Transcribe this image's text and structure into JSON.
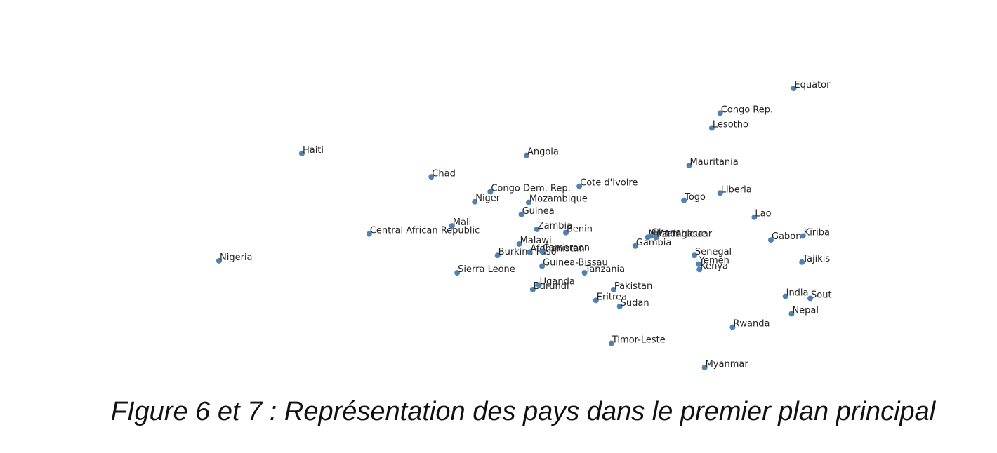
{
  "caption": "FIgure 6 et 7 : Représentation des pays dans le premier plan principal",
  "colors": {
    "point": "#4f81b3",
    "label": "#222222",
    "background": "#ffffff"
  },
  "chart_data": {
    "type": "scatter",
    "title": "",
    "xlabel": "",
    "ylabel": "",
    "axes_visible": false,
    "grid": false,
    "xlim": [
      -3.6,
      3.6
    ],
    "ylim": [
      -2.3,
      2.2
    ],
    "points": [
      {
        "label": "Nigeria",
        "x": -3.5,
        "y": -0.45
      },
      {
        "label": "Haiti",
        "x": -2.7,
        "y": 1.15
      },
      {
        "label": "Central African Republic",
        "x": -2.05,
        "y": -0.05
      },
      {
        "label": "Chad",
        "x": -1.45,
        "y": 0.8
      },
      {
        "label": "Mali",
        "x": -1.25,
        "y": 0.07
      },
      {
        "label": "Sierra Leone",
        "x": -1.2,
        "y": -0.63
      },
      {
        "label": "Niger",
        "x": -1.03,
        "y": 0.43
      },
      {
        "label": "Congo Dem. Rep.",
        "x": -0.88,
        "y": 0.58
      },
      {
        "label": "Burkina Faso",
        "x": -0.81,
        "y": -0.37
      },
      {
        "label": "Malawi",
        "x": -0.6,
        "y": -0.2
      },
      {
        "label": "Guinea",
        "x": -0.58,
        "y": 0.24
      },
      {
        "label": "Angola",
        "x": -0.53,
        "y": 1.12
      },
      {
        "label": "Mozambique",
        "x": -0.51,
        "y": 0.42
      },
      {
        "label": "Afghanistan",
        "x": -0.5,
        "y": -0.32
      },
      {
        "label": "Burundi",
        "x": -0.47,
        "y": -0.88
      },
      {
        "label": "Zambia",
        "x": -0.43,
        "y": 0.02
      },
      {
        "label": "Uganda",
        "x": -0.41,
        "y": -0.81
      },
      {
        "label": "Guinea-Bissau",
        "x": -0.38,
        "y": -0.53
      },
      {
        "label": "Cameroon",
        "x": -0.38,
        "y": -0.31
      },
      {
        "label": "Benin",
        "x": -0.15,
        "y": -0.03
      },
      {
        "label": "Cote d'Ivoire",
        "x": -0.02,
        "y": 0.66
      },
      {
        "label": "Tanzania",
        "x": 0.03,
        "y": -0.63
      },
      {
        "label": "Eritrea",
        "x": 0.14,
        "y": -1.04
      },
      {
        "label": "Timor-Leste",
        "x": 0.29,
        "y": -1.68
      },
      {
        "label": "Pakistan",
        "x": 0.31,
        "y": -0.88
      },
      {
        "label": "Sudan",
        "x": 0.37,
        "y": -1.13
      },
      {
        "label": "Gambia",
        "x": 0.52,
        "y": -0.23
      },
      {
        "label": "Mozambique",
        "x": 0.64,
        "y": -0.1
      },
      {
        "label": "Ghana",
        "x": 0.67,
        "y": -0.08
      },
      {
        "label": "Madagascar",
        "x": 0.72,
        "y": -0.1
      },
      {
        "label": "Togo",
        "x": 0.99,
        "y": 0.45
      },
      {
        "label": "Mauritania",
        "x": 1.04,
        "y": 0.97
      },
      {
        "label": "Senegal",
        "x": 1.09,
        "y": -0.37
      },
      {
        "label": "Yemen",
        "x": 1.13,
        "y": -0.5
      },
      {
        "label": "Kenya",
        "x": 1.14,
        "y": -0.58
      },
      {
        "label": "Myanmar",
        "x": 1.19,
        "y": -2.04
      },
      {
        "label": "Lesotho",
        "x": 1.26,
        "y": 1.53
      },
      {
        "label": "Liberia",
        "x": 1.34,
        "y": 0.56
      },
      {
        "label": "Congo Rep.",
        "x": 1.34,
        "y": 1.75
      },
      {
        "label": "Rwanda",
        "x": 1.46,
        "y": -1.44
      },
      {
        "label": "Lao",
        "x": 1.67,
        "y": 0.2
      },
      {
        "label": "Gabon",
        "x": 1.83,
        "y": -0.14
      },
      {
        "label": "India",
        "x": 1.97,
        "y": -0.98
      },
      {
        "label": "Nepal",
        "x": 2.03,
        "y": -1.24
      },
      {
        "label": "Equator",
        "x": 2.05,
        "y": 2.12
      },
      {
        "label": "Tajikis",
        "x": 2.13,
        "y": -0.47
      },
      {
        "label": "Kiriba",
        "x": 2.14,
        "y": -0.08
      },
      {
        "label": "Sout",
        "x": 2.21,
        "y": -1.01
      }
    ]
  }
}
